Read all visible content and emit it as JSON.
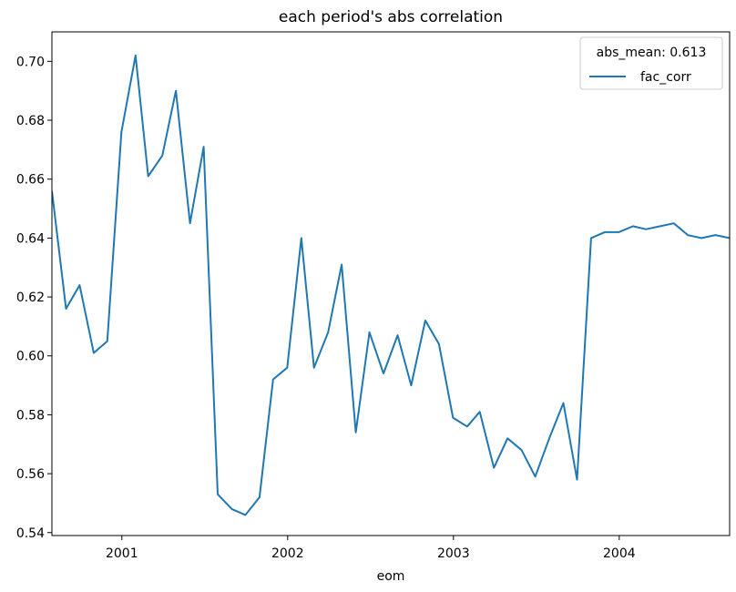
{
  "chart_data": {
    "type": "line",
    "title": "each period's abs correlation",
    "xlabel": "eom",
    "ylabel": "",
    "xlim": [
      "2000-07-31",
      "2004-08-31"
    ],
    "ylim": [
      0.539,
      0.71
    ],
    "x_ticks": [
      "2001-01-01",
      "2002-01-01",
      "2003-01-01",
      "2004-01-01"
    ],
    "x_tick_labels": [
      "2001",
      "2002",
      "2003",
      "2004"
    ],
    "y_ticks": [
      0.54,
      0.56,
      0.58,
      0.6,
      0.62,
      0.64,
      0.66,
      0.68,
      0.7
    ],
    "y_tick_labels": [
      "0.54",
      "0.56",
      "0.58",
      "0.60",
      "0.62",
      "0.64",
      "0.66",
      "0.68",
      "0.70"
    ],
    "grid": false,
    "legend": {
      "placement": "top-right",
      "title": "abs_mean: 0.613"
    },
    "series": [
      {
        "name": "fac_corr",
        "color": "#1f77b4",
        "x": [
          "2000-07-31",
          "2000-08-31",
          "2000-09-30",
          "2000-10-31",
          "2000-11-30",
          "2000-12-31",
          "2001-01-31",
          "2001-02-28",
          "2001-03-31",
          "2001-04-30",
          "2001-05-31",
          "2001-06-30",
          "2001-07-31",
          "2001-08-31",
          "2001-09-30",
          "2001-10-31",
          "2001-11-30",
          "2001-12-31",
          "2002-01-31",
          "2002-02-28",
          "2002-03-31",
          "2002-04-30",
          "2002-05-31",
          "2002-06-30",
          "2002-07-31",
          "2002-08-31",
          "2002-09-30",
          "2002-10-31",
          "2002-11-30",
          "2002-12-31",
          "2003-01-31",
          "2003-02-28",
          "2003-03-31",
          "2003-04-30",
          "2003-05-31",
          "2003-06-30",
          "2003-07-31",
          "2003-08-31",
          "2003-09-30",
          "2003-10-31",
          "2003-11-30",
          "2003-12-31",
          "2004-01-31",
          "2004-02-29",
          "2004-03-31",
          "2004-04-30",
          "2004-05-31",
          "2004-06-30",
          "2004-07-31",
          "2004-08-31"
        ],
        "values": [
          0.656,
          0.616,
          0.624,
          0.601,
          0.605,
          0.676,
          0.702,
          0.661,
          0.668,
          0.69,
          0.645,
          0.671,
          0.553,
          0.548,
          0.546,
          0.552,
          0.592,
          0.596,
          0.64,
          0.596,
          0.608,
          0.631,
          0.574,
          0.608,
          0.594,
          0.607,
          0.59,
          0.612,
          0.604,
          0.579,
          0.576,
          0.581,
          0.562,
          0.572,
          0.568,
          0.559,
          0.572,
          0.584,
          0.558,
          0.64,
          0.642,
          0.642,
          0.644,
          0.643,
          0.644,
          0.645,
          0.641,
          0.64,
          0.641,
          0.64
        ]
      }
    ]
  }
}
